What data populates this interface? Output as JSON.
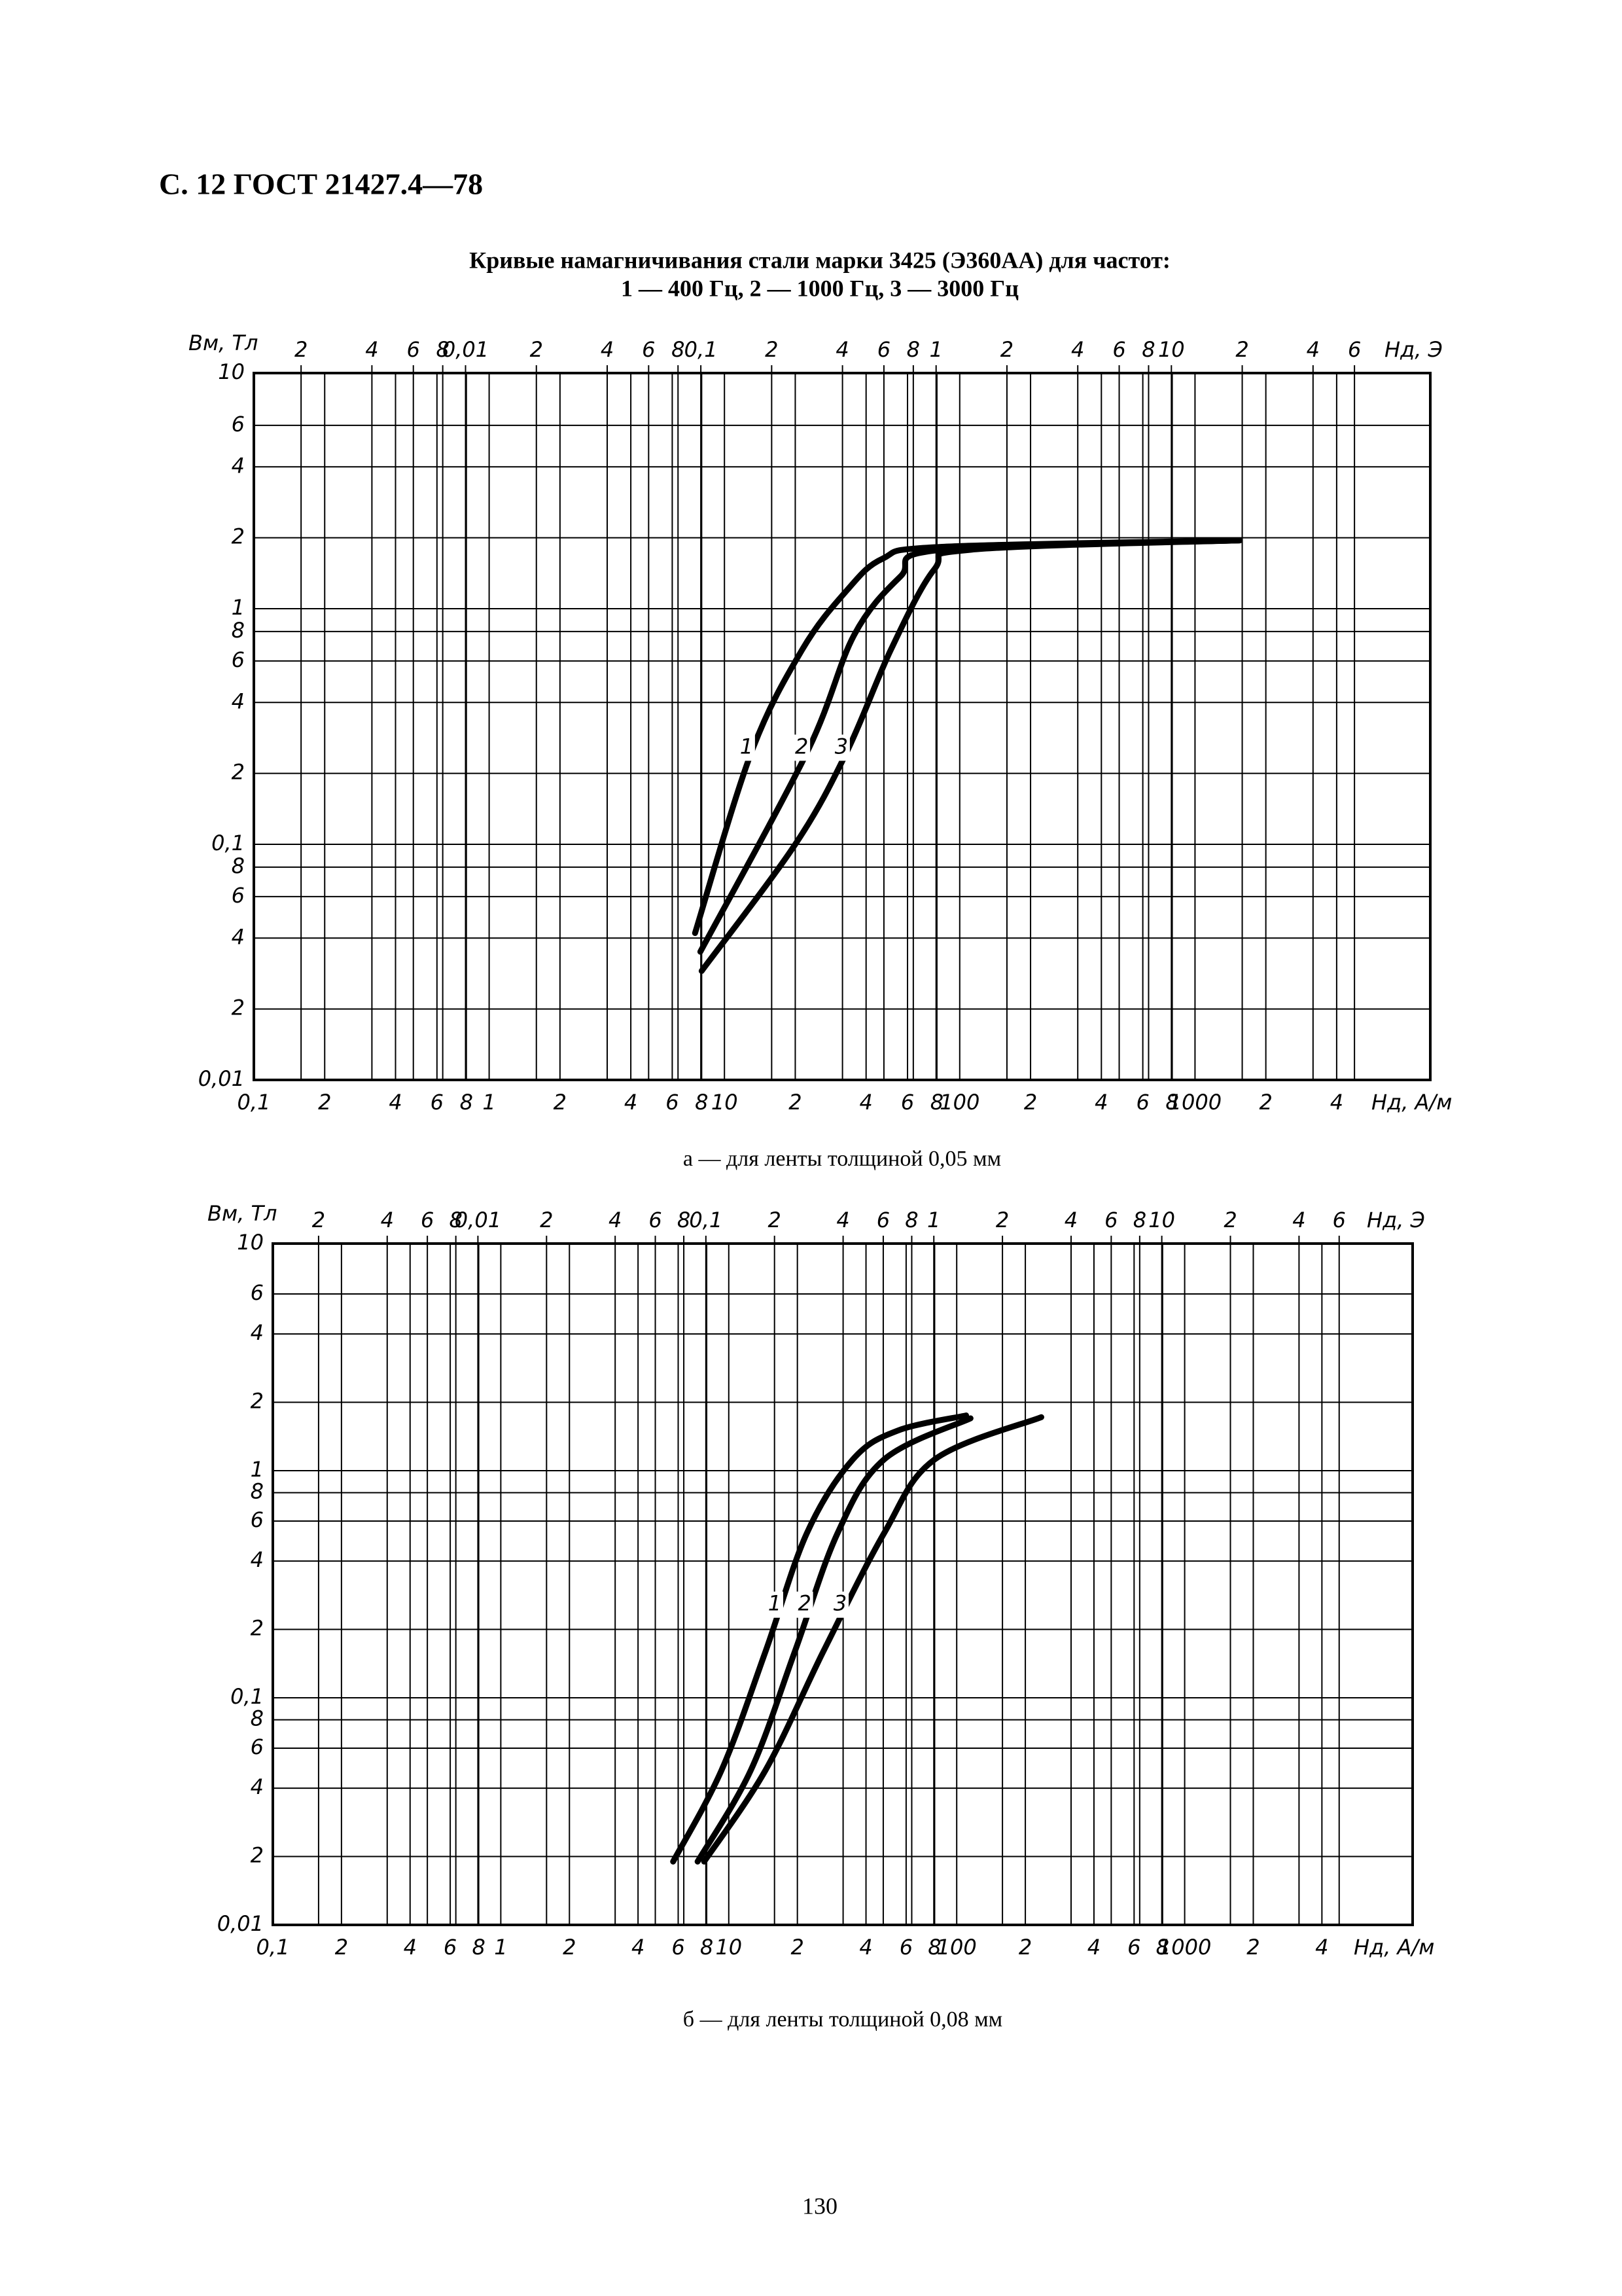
{
  "header": "С. 12 ГОСТ 21427.4—78",
  "title": [
    "Кривые намагничивания стали марки 3425 (Э360АА) для частот:",
    "1 — 400 Гц, 2 — 1000 Гц, 3 — 3000 Гц"
  ],
  "page_number": "130",
  "chart_data": [
    {
      "type": "line",
      "log_x": true,
      "log_y": true,
      "grid": true,
      "caption": "а — для ленты толщиной 0,05 мм",
      "ylabel": "Bм, Тл",
      "xlabel": "Hд, А/м",
      "x2label": "Hд, Э",
      "xlim": [
        0.1,
        10000
      ],
      "ylim": [
        0.01,
        10
      ],
      "x2lim": [
        0.00126,
        126
      ],
      "xticks": [
        {
          "value": 0.1,
          "label": "0,1"
        },
        {
          "value": 0.2,
          "label": "2"
        },
        {
          "value": 0.4,
          "label": "4"
        },
        {
          "value": 0.6,
          "label": "6"
        },
        {
          "value": 0.8,
          "label": "8"
        },
        1,
        2,
        4,
        6,
        8,
        10,
        {
          "value": 20,
          "label": "2"
        },
        {
          "value": 40,
          "label": "4"
        },
        {
          "value": 60,
          "label": "6"
        },
        {
          "value": 80,
          "label": "8"
        },
        100,
        {
          "value": 200,
          "label": "2"
        },
        {
          "value": 400,
          "label": "4"
        },
        {
          "value": 600,
          "label": "6"
        },
        {
          "value": 800,
          "label": "8"
        },
        1000,
        {
          "value": 2000,
          "label": "2"
        },
        {
          "value": 4000,
          "label": "4"
        }
      ],
      "yticks": [
        {
          "value": 0.01,
          "label": "0,01"
        },
        {
          "value": 0.02,
          "label": "2"
        },
        {
          "value": 0.04,
          "label": "4"
        },
        {
          "value": 0.06,
          "label": "6"
        },
        {
          "value": 0.08,
          "label": "8"
        },
        {
          "value": 0.1,
          "label": "0,1"
        },
        {
          "value": 0.2,
          "label": "2"
        },
        {
          "value": 0.4,
          "label": "4"
        },
        {
          "value": 0.6,
          "label": "6"
        },
        {
          "value": 0.8,
          "label": "8"
        },
        1,
        2,
        4,
        6,
        10
      ],
      "x2ticks": [
        {
          "value": 0.002,
          "label": "2"
        },
        {
          "value": 0.004,
          "label": "4"
        },
        {
          "value": 0.006,
          "label": "6"
        },
        {
          "value": 0.008,
          "label": "8"
        },
        {
          "value": 0.01,
          "label": "0,01"
        },
        {
          "value": 0.02,
          "label": "2"
        },
        {
          "value": 0.04,
          "label": "4"
        },
        {
          "value": 0.06,
          "label": "6"
        },
        {
          "value": 0.08,
          "label": "8"
        },
        {
          "value": 0.1,
          "label": "0,1"
        },
        {
          "value": 0.2,
          "label": "2"
        },
        {
          "value": 0.4,
          "label": "4"
        },
        {
          "value": 0.6,
          "label": "6"
        },
        {
          "value": 0.8,
          "label": "8"
        },
        1,
        2,
        4,
        6,
        8,
        10,
        {
          "value": 20,
          "label": "2"
        },
        {
          "value": 40,
          "label": "4"
        },
        {
          "value": 60,
          "label": "6"
        }
      ],
      "series": [
        {
          "name": "1",
          "color": "#000000",
          "x": [
            7.5,
            13,
            21.4,
            33,
            47,
            84,
            1550
          ],
          "values": [
            0.042,
            0.245,
            0.67,
            1.19,
            1.63,
            1.83,
            1.95
          ]
        },
        {
          "name": "2",
          "color": "#000000",
          "x": [
            7.9,
            22.4,
            35.5,
            56,
            84,
            1550
          ],
          "values": [
            0.035,
            0.245,
            0.77,
            1.37,
            1.78,
            1.95
          ]
        },
        {
          "name": "3",
          "color": "#000000",
          "x": [
            8,
            20,
            33,
            51,
            78,
            112,
            1550
          ],
          "values": [
            0.029,
            0.1,
            0.245,
            0.67,
            1.47,
            1.78,
            1.95
          ]
        }
      ]
    },
    {
      "type": "line",
      "log_x": true,
      "log_y": true,
      "grid": true,
      "caption": "б — для ленты толщиной 0,08 мм",
      "ylabel": "Bм, Тл",
      "xlabel": "Hд, А/м",
      "x2label": "Hд, Э",
      "xlim": [
        0.1,
        10000
      ],
      "ylim": [
        0.01,
        10
      ],
      "x2lim": [
        0.00126,
        126
      ],
      "xticks": [
        {
          "value": 0.1,
          "label": "0,1"
        },
        {
          "value": 0.2,
          "label": "2"
        },
        {
          "value": 0.4,
          "label": "4"
        },
        {
          "value": 0.6,
          "label": "6"
        },
        {
          "value": 0.8,
          "label": "8"
        },
        1,
        2,
        4,
        6,
        8,
        10,
        {
          "value": 20,
          "label": "2"
        },
        {
          "value": 40,
          "label": "4"
        },
        {
          "value": 60,
          "label": "6"
        },
        {
          "value": 80,
          "label": "8"
        },
        100,
        {
          "value": 200,
          "label": "2"
        },
        {
          "value": 400,
          "label": "4"
        },
        {
          "value": 600,
          "label": "6"
        },
        {
          "value": 800,
          "label": "8"
        },
        1000,
        {
          "value": 2000,
          "label": "2"
        },
        {
          "value": 4000,
          "label": "4"
        }
      ],
      "yticks": [
        {
          "value": 0.01,
          "label": "0,01"
        },
        {
          "value": 0.02,
          "label": "2"
        },
        {
          "value": 0.04,
          "label": "4"
        },
        {
          "value": 0.06,
          "label": "6"
        },
        {
          "value": 0.08,
          "label": "8"
        },
        {
          "value": 0.1,
          "label": "0,1"
        },
        {
          "value": 0.2,
          "label": "2"
        },
        {
          "value": 0.4,
          "label": "4"
        },
        {
          "value": 0.6,
          "label": "6"
        },
        {
          "value": 0.8,
          "label": "8"
        },
        1,
        2,
        4,
        6,
        10
      ],
      "x2ticks": [
        {
          "value": 0.002,
          "label": "2"
        },
        {
          "value": 0.004,
          "label": "4"
        },
        {
          "value": 0.006,
          "label": "6"
        },
        {
          "value": 0.008,
          "label": "8"
        },
        {
          "value": 0.01,
          "label": "0,01"
        },
        {
          "value": 0.02,
          "label": "2"
        },
        {
          "value": 0.04,
          "label": "4"
        },
        {
          "value": 0.06,
          "label": "6"
        },
        {
          "value": 0.08,
          "label": "8"
        },
        {
          "value": 0.1,
          "label": "0,1"
        },
        {
          "value": 0.2,
          "label": "2"
        },
        {
          "value": 0.4,
          "label": "4"
        },
        {
          "value": 0.6,
          "label": "6"
        },
        {
          "value": 0.8,
          "label": "8"
        },
        1,
        2,
        4,
        6,
        8,
        10,
        {
          "value": 20,
          "label": "2"
        },
        {
          "value": 40,
          "label": "4"
        },
        {
          "value": 60,
          "label": "6"
        }
      ],
      "series": [
        {
          "name": "1",
          "color": "#000000",
          "x": [
            5.7,
            9.3,
            14.5,
            22,
            35,
            55,
            110
          ],
          "values": [
            0.019,
            0.048,
            0.16,
            0.53,
            1.12,
            1.5,
            1.75
          ]
        },
        {
          "name": "2",
          "color": "#000000",
          "x": [
            7.3,
            12.5,
            19.5,
            30,
            48,
            115
          ],
          "values": [
            0.019,
            0.048,
            0.16,
            0.53,
            1.12,
            1.7
          ]
        },
        {
          "name": "3",
          "color": "#000000",
          "x": [
            7.8,
            14.5,
            26,
            48,
            80,
            235
          ],
          "values": [
            0.019,
            0.048,
            0.16,
            0.53,
            1.12,
            1.72
          ]
        }
      ]
    }
  ]
}
